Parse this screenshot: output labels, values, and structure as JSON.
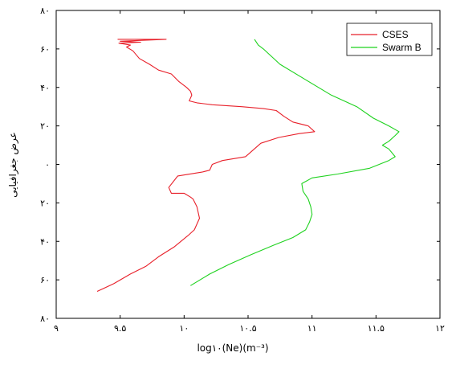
{
  "chart_data": {
    "type": "line",
    "xlabel": "log۱۰(Ne)(m⁻³)",
    "ylabel": "عرض جغرافیایی",
    "x_ticks": [
      9,
      9.5,
      10,
      10.5,
      11,
      11.5,
      12
    ],
    "x_tick_labels": [
      "۹",
      "۹.۵",
      "۱۰",
      "۱۰.۵",
      "۱۱",
      "۱۱.۵",
      "۱۲"
    ],
    "y_ticks": [
      80,
      60,
      40,
      20,
      0,
      -20,
      -40,
      -60,
      -80
    ],
    "y_tick_labels": [
      "۸۰",
      "۶۰",
      "۴۰",
      "۲۰",
      "۰",
      "۲۰",
      "۴۰",
      "۶۰",
      "۸۰"
    ],
    "xlim": [
      9,
      12
    ],
    "ylim": [
      -80,
      80
    ],
    "grid": false,
    "legend_position": "top-right",
    "series": [
      {
        "name": "CSES",
        "color": "#e8202a",
        "x": [
          9.48,
          9.86,
          9.5,
          9.66,
          9.49,
          9.58,
          9.55,
          9.6,
          9.65,
          9.73,
          9.8,
          9.9,
          9.96,
          10.02,
          10.05,
          10.06,
          10.04,
          10.1,
          10.22,
          10.45,
          10.62,
          10.72,
          10.78,
          10.85,
          10.97,
          11.02,
          10.9,
          10.74,
          10.6,
          10.48,
          10.3,
          10.22,
          10.2,
          10.14,
          9.95,
          9.88,
          9.9,
          10.0,
          10.05,
          10.07,
          10.1,
          10.12,
          10.08,
          10.03,
          9.92,
          9.8,
          9.7,
          9.58,
          9.45,
          9.32
        ],
        "y": [
          65,
          65,
          64,
          63.5,
          63,
          62,
          61,
          59,
          55,
          52,
          49,
          47,
          43,
          40,
          38,
          36,
          33,
          32,
          31,
          30,
          29,
          28,
          25,
          22,
          20,
          17,
          16,
          14,
          11,
          4,
          2,
          0,
          -3,
          -4,
          -6,
          -12,
          -15,
          -15,
          -17,
          -18,
          -22,
          -28,
          -34,
          -37,
          -43,
          -48,
          -53,
          -57,
          -62,
          -66
        ]
      },
      {
        "name": "Swarm B",
        "color": "#1ed21e",
        "x": [
          10.55,
          10.58,
          10.62,
          10.75,
          10.95,
          11.15,
          11.35,
          11.48,
          11.6,
          11.68,
          11.65,
          11.6,
          11.55,
          11.6,
          11.65,
          11.6,
          11.45,
          11.2,
          11.0,
          10.92,
          10.93,
          10.97,
          10.99,
          11.0,
          10.98,
          10.95,
          10.85,
          10.7,
          10.52,
          10.35,
          10.2,
          10.05
        ],
        "y": [
          65,
          62,
          60,
          52,
          44,
          36,
          30,
          24,
          20,
          17,
          15,
          12,
          10,
          8,
          4,
          2,
          -2,
          -5,
          -7,
          -10,
          -14,
          -18,
          -22,
          -26,
          -30,
          -34,
          -38,
          -42,
          -47,
          -52,
          -57,
          -63
        ]
      }
    ]
  }
}
